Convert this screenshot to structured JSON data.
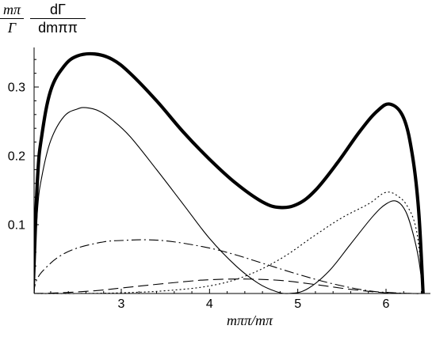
{
  "chart_data": {
    "type": "line",
    "ylabel_left": {
      "numerator": "mπ",
      "denominator": "Γ"
    },
    "ylabel_right": {
      "numerator": "dΓ",
      "denominator": "dmππ"
    },
    "xlabel": "mππ/mπ",
    "xlim": [
      2.0,
      6.45
    ],
    "ylim": [
      0.0,
      0.36
    ],
    "x_ticks": [
      "3",
      "4",
      "5",
      "6"
    ],
    "x_tick_values": [
      3,
      4,
      5,
      6
    ],
    "y_ticks": [
      "0.1",
      "0.2",
      "0.3"
    ],
    "y_tick_values": [
      0.1,
      0.2,
      0.3
    ],
    "grid": false,
    "series": [
      {
        "style": "thick-solid",
        "x": [
          2.0,
          2.05,
          2.1,
          2.2,
          2.35,
          2.5,
          2.7,
          2.9,
          3.1,
          3.4,
          3.7,
          4.0,
          4.3,
          4.6,
          4.8,
          5.0,
          5.2,
          5.45,
          5.7,
          5.9,
          6.05,
          6.2,
          6.3,
          6.37,
          6.42
        ],
        "values": [
          0.0,
          0.165,
          0.23,
          0.295,
          0.33,
          0.345,
          0.348,
          0.34,
          0.32,
          0.28,
          0.235,
          0.195,
          0.16,
          0.133,
          0.125,
          0.13,
          0.15,
          0.19,
          0.235,
          0.265,
          0.275,
          0.255,
          0.2,
          0.12,
          0.0
        ]
      },
      {
        "style": "thin-solid",
        "x": [
          2.0,
          2.05,
          2.1,
          2.2,
          2.35,
          2.5,
          2.6,
          2.75,
          2.9,
          3.1,
          3.4,
          3.7,
          4.0,
          4.3,
          4.55,
          4.75,
          4.9,
          5.1,
          5.35,
          5.6,
          5.85,
          6.0,
          6.12,
          6.22,
          6.3,
          6.37,
          6.42
        ],
        "values": [
          0.0,
          0.12,
          0.17,
          0.222,
          0.257,
          0.268,
          0.27,
          0.265,
          0.252,
          0.228,
          0.18,
          0.13,
          0.08,
          0.04,
          0.015,
          0.003,
          0.0,
          0.006,
          0.032,
          0.072,
          0.112,
          0.13,
          0.134,
          0.12,
          0.09,
          0.05,
          0.0
        ]
      },
      {
        "style": "dotted",
        "x": [
          2.0,
          2.5,
          3.0,
          3.5,
          4.0,
          4.4,
          4.8,
          5.2,
          5.5,
          5.8,
          6.0,
          6.15,
          6.25,
          6.33,
          6.38,
          6.42
        ],
        "values": [
          0.0,
          0.0,
          0.001,
          0.004,
          0.011,
          0.025,
          0.05,
          0.085,
          0.11,
          0.13,
          0.147,
          0.14,
          0.125,
          0.1,
          0.06,
          0.0
        ]
      },
      {
        "style": "dash-dot",
        "x": [
          2.0,
          2.05,
          2.15,
          2.3,
          2.5,
          2.8,
          3.0,
          3.3,
          3.6,
          4.0,
          4.3,
          4.6,
          5.0,
          5.4,
          5.8,
          6.1,
          6.3,
          6.42
        ],
        "values": [
          0.0,
          0.022,
          0.038,
          0.054,
          0.066,
          0.075,
          0.077,
          0.078,
          0.075,
          0.066,
          0.056,
          0.044,
          0.028,
          0.014,
          0.004,
          0.001,
          0.0,
          0.0
        ]
      },
      {
        "style": "dashed",
        "x": [
          2.0,
          2.3,
          2.7,
          3.0,
          3.3,
          3.7,
          4.0,
          4.4,
          4.8,
          5.2,
          5.6,
          6.0,
          6.3,
          6.42
        ],
        "values": [
          0.0,
          0.001,
          0.004,
          0.008,
          0.012,
          0.017,
          0.02,
          0.021,
          0.019,
          0.013,
          0.006,
          0.001,
          0.0,
          0.0
        ]
      }
    ]
  }
}
